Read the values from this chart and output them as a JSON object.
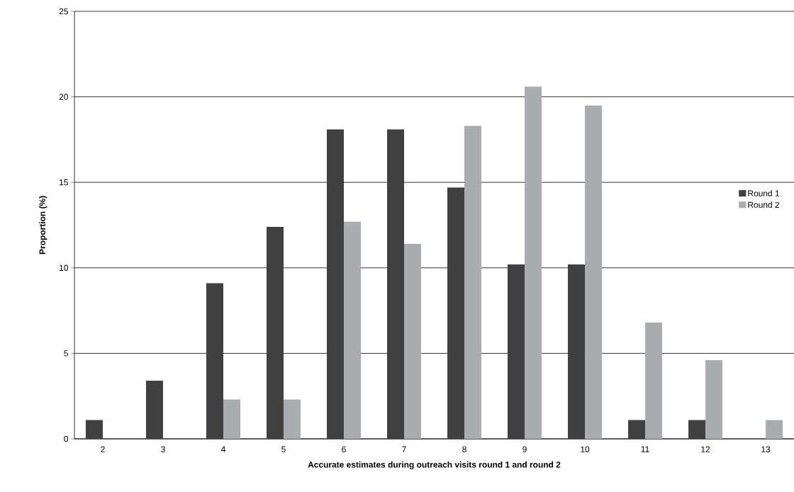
{
  "chart_data": {
    "type": "bar",
    "xlabel": "Accurate estimates during outreach visits round 1 and round 2",
    "ylabel": "Proportion (%)",
    "categories": [
      "2",
      "3",
      "4",
      "5",
      "6",
      "7",
      "8",
      "9",
      "10",
      "11",
      "12",
      "13"
    ],
    "series": [
      {
        "name": "Round 1",
        "color": "#404040",
        "values": [
          1.1,
          3.4,
          9.1,
          12.4,
          18.1,
          18.1,
          14.7,
          10.2,
          10.2,
          1.1,
          1.1,
          0
        ]
      },
      {
        "name": "Round 2",
        "color": "#abacaf",
        "values": [
          0,
          0,
          2.3,
          2.3,
          12.7,
          11.4,
          18.3,
          20.6,
          19.5,
          6.8,
          4.6,
          1.1
        ]
      }
    ],
    "ylim": [
      0,
      25
    ],
    "yticks": [
      0,
      5,
      10,
      15,
      20,
      25
    ],
    "grid": "y",
    "legend": "right"
  }
}
